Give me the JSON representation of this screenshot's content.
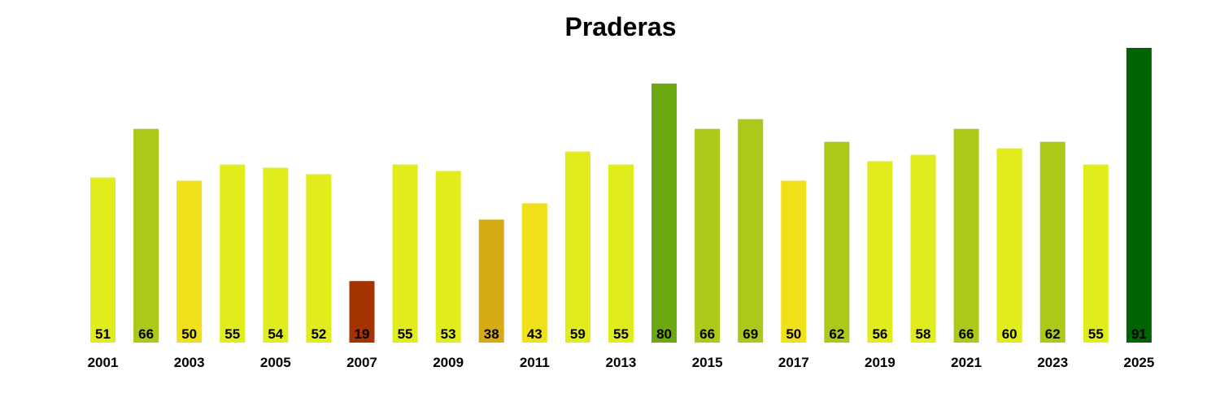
{
  "chart_data": {
    "type": "bar",
    "title": "Praderas",
    "xlabel": "",
    "ylabel": "",
    "ylim": [
      0,
      91
    ],
    "grid": false,
    "categories": [
      "2001",
      "2002",
      "2003",
      "2004",
      "2005",
      "2006",
      "2007",
      "2008",
      "2009",
      "2010",
      "2011",
      "2012",
      "2013",
      "2014",
      "2015",
      "2016",
      "2017",
      "2018",
      "2019",
      "2020",
      "2021",
      "2022",
      "2023",
      "2024",
      "2025"
    ],
    "x_tick_labels": [
      "2001",
      "2003",
      "2005",
      "2007",
      "2009",
      "2011",
      "2013",
      "2015",
      "2017",
      "2019",
      "2021",
      "2023",
      "2025"
    ],
    "values": [
      51,
      66,
      50,
      55,
      54,
      52,
      19,
      55,
      53,
      38,
      43,
      59,
      55,
      80,
      66,
      69,
      50,
      62,
      56,
      58,
      66,
      60,
      62,
      55,
      91
    ],
    "colors": [
      "#e0ec1c",
      "#aac918",
      "#efe01a",
      "#e0ec1c",
      "#e0ec1c",
      "#e0ec1c",
      "#a33300",
      "#e0ec1c",
      "#e0ec1c",
      "#d6aa12",
      "#efe01a",
      "#e0ec1c",
      "#e0ec1c",
      "#6ca810",
      "#aac918",
      "#aac918",
      "#efe01a",
      "#aac918",
      "#e0ec1c",
      "#e0ec1c",
      "#aac918",
      "#e0ec1c",
      "#aac918",
      "#e0ec1c",
      "#006405"
    ]
  }
}
